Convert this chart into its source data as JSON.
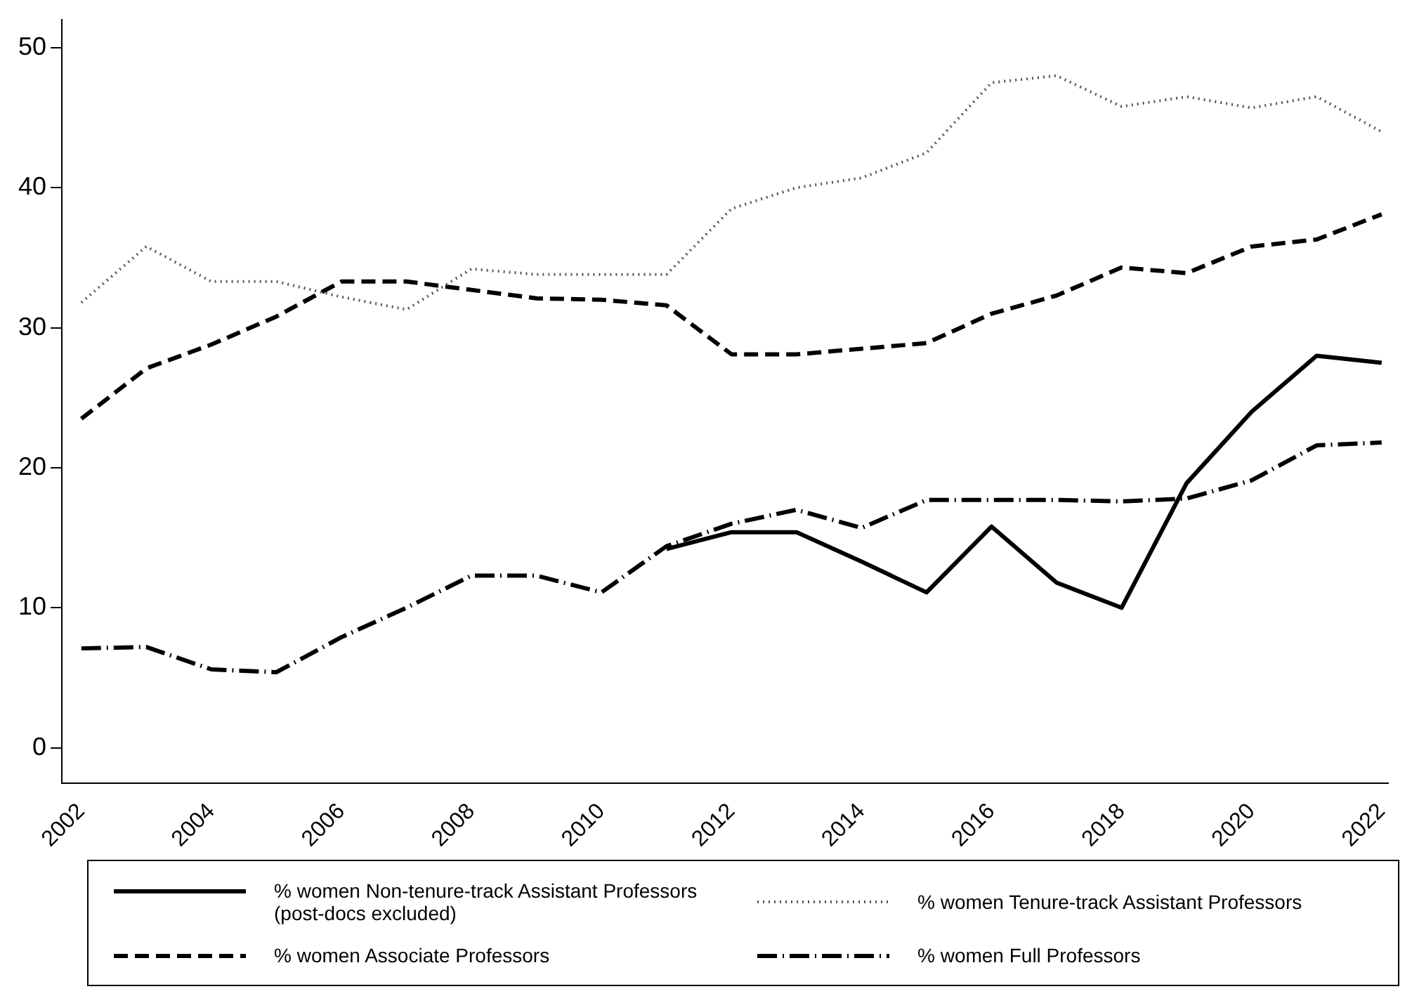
{
  "chart_data": {
    "type": "line",
    "x": [
      2002,
      2003,
      2004,
      2005,
      2006,
      2007,
      2008,
      2009,
      2010,
      2011,
      2012,
      2013,
      2014,
      2015,
      2016,
      2017,
      2018,
      2019,
      2020,
      2021,
      2022
    ],
    "xlim": [
      2001.7,
      2022.1
    ],
    "xticks": [
      2002,
      2004,
      2006,
      2008,
      2010,
      2012,
      2014,
      2016,
      2018,
      2020,
      2022
    ],
    "ylim": [
      -2.5,
      52
    ],
    "yticks": [
      0,
      10,
      20,
      30,
      40,
      50
    ],
    "grid": false,
    "legend": "bottom",
    "marker": "none",
    "series": [
      {
        "name": "% women Non-tenure-track Assistant Professors (post-docs excluded)",
        "color": "#000000",
        "line_style": "solid",
        "values": [
          null,
          null,
          null,
          null,
          null,
          null,
          null,
          null,
          null,
          14.2,
          15.4,
          15.4,
          13.3,
          11.1,
          15.8,
          11.8,
          10.0,
          18.9,
          24.0,
          28.0,
          27.5
        ]
      },
      {
        "name": "% women Tenure-track Assistant Professors",
        "color": "#555555",
        "line_style": "dotted",
        "values": [
          31.8,
          35.8,
          33.3,
          33.3,
          32.2,
          31.3,
          34.2,
          33.8,
          33.8,
          33.8,
          38.5,
          40.0,
          40.7,
          42.5,
          47.5,
          48.0,
          45.8,
          46.5,
          45.7,
          46.5,
          44.0
        ]
      },
      {
        "name": "% women Associate Professors",
        "color": "#000000",
        "line_style": "dashed",
        "values": [
          23.5,
          27.1,
          28.8,
          30.8,
          33.3,
          33.3,
          32.7,
          32.1,
          32.0,
          31.6,
          28.1,
          28.1,
          28.5,
          28.9,
          31.0,
          32.3,
          34.3,
          33.9,
          35.8,
          36.3,
          38.1
        ]
      },
      {
        "name": "% women Full Professors",
        "color": "#000000",
        "line_style": "dashdot",
        "values": [
          7.1,
          7.2,
          5.6,
          5.4,
          7.9,
          10.0,
          12.3,
          12.3,
          11.1,
          14.4,
          16.0,
          17.0,
          15.7,
          17.7,
          17.7,
          17.7,
          17.6,
          17.8,
          19.1,
          21.6,
          21.8
        ]
      }
    ]
  }
}
